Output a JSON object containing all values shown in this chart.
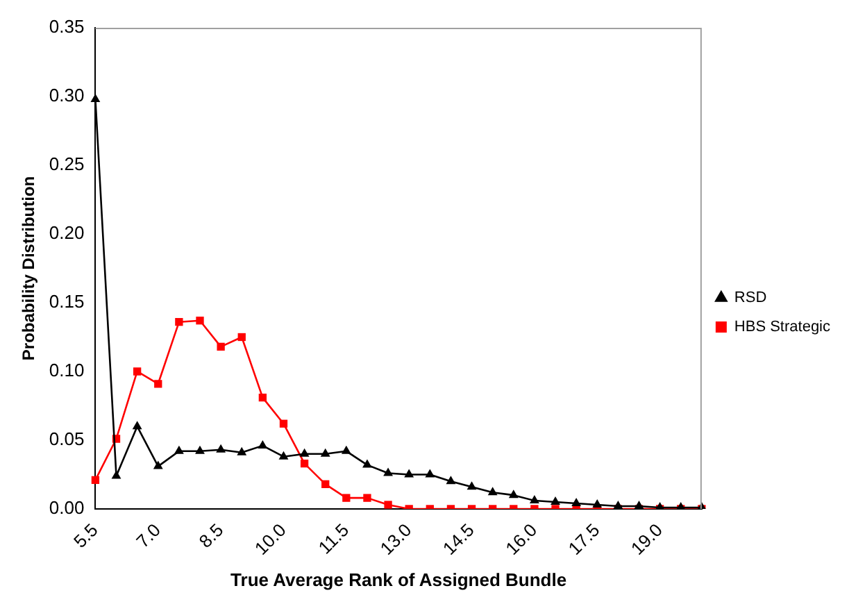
{
  "chart_data": {
    "type": "line",
    "xlabel": "True Average Rank of Assigned Bundle",
    "ylabel": "Probability Distribution",
    "categories": [
      "5.5",
      null,
      null,
      "7.0",
      null,
      null,
      "8.5",
      null,
      null,
      "10.0",
      null,
      null,
      "11.5",
      null,
      null,
      "13.0",
      null,
      null,
      "14.5",
      null,
      null,
      "16.0",
      null,
      null,
      "17.5",
      null,
      null,
      "19.0",
      null,
      null
    ],
    "series": [
      {
        "name": "RSD",
        "color": "#000000",
        "marker": "triangle",
        "values": [
          0.298,
          0.024,
          0.06,
          0.031,
          0.042,
          0.042,
          0.043,
          0.041,
          0.046,
          0.038,
          0.04,
          0.04,
          0.042,
          0.032,
          0.026,
          0.025,
          0.025,
          0.02,
          0.016,
          0.012,
          0.01,
          0.006,
          0.005,
          0.004,
          0.003,
          0.002,
          0.002,
          0.001,
          0.001,
          0.001
        ]
      },
      {
        "name": "HBS Strategic",
        "color": "#ff0000",
        "marker": "square",
        "values": [
          0.021,
          0.051,
          0.1,
          0.091,
          0.136,
          0.137,
          0.118,
          0.125,
          0.081,
          0.062,
          0.033,
          0.018,
          0.008,
          0.008,
          0.003,
          0,
          0,
          0,
          0,
          0,
          0,
          0,
          0,
          0,
          0,
          0,
          0,
          0,
          0,
          0
        ]
      }
    ],
    "ylim": [
      0,
      0.35
    ],
    "yticks": [
      {
        "value": 0,
        "label": "0.00"
      },
      {
        "value": 0.05,
        "label": "0.05"
      },
      {
        "value": 0.1,
        "label": "0.10"
      },
      {
        "value": 0.15,
        "label": "0.15"
      },
      {
        "value": 0.2,
        "label": "0.20"
      },
      {
        "value": 0.25,
        "label": "0.25"
      },
      {
        "value": 0.3,
        "label": "0.30"
      },
      {
        "value": 0.35,
        "label": "0.35"
      }
    ],
    "grid": false,
    "legend": "right",
    "line_style": "solid"
  }
}
